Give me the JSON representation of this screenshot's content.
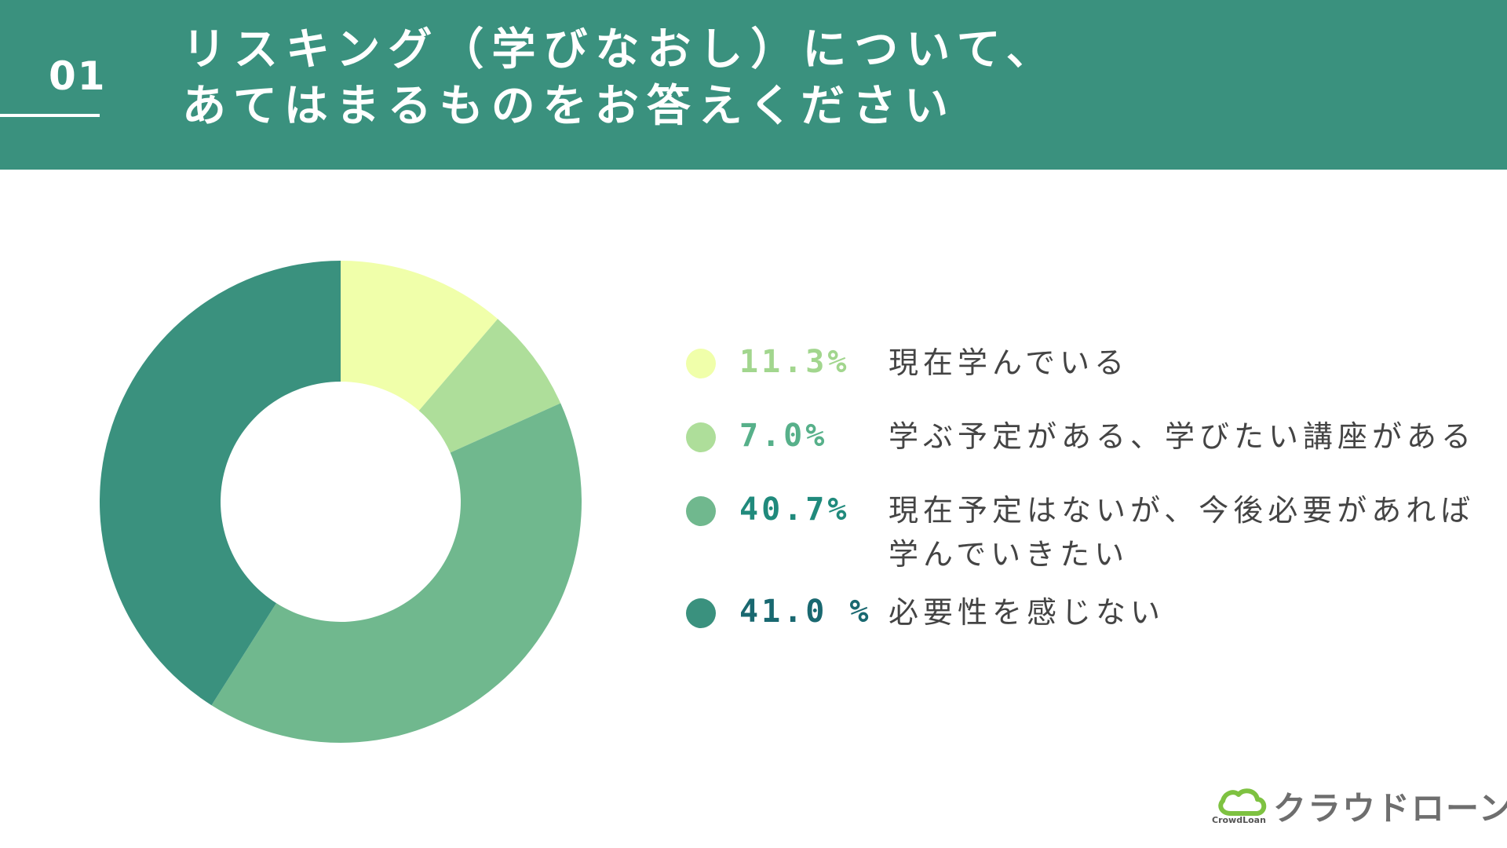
{
  "header": {
    "question_number": "01",
    "title_lines": [
      "リスキング（学びなおし）について、",
      "あてはまるものをお答えください"
    ]
  },
  "chart_data": {
    "type": "pie",
    "donut": true,
    "start_angle_deg": 0,
    "direction": "clockwise",
    "slices": [
      {
        "value": 11.3,
        "value_label": "11.3%",
        "label_lines": [
          "現在学んでいる"
        ],
        "color": "#f0ffaa",
        "label_color": "#a2d68e"
      },
      {
        "value": 7.0,
        "value_label": "7.0%",
        "label_lines": [
          "学ぶ予定がある、学びたい講座がある"
        ],
        "color": "#aede9a",
        "label_color": "#57b08a"
      },
      {
        "value": 40.7,
        "value_label": "40.7%",
        "label_lines": [
          "現在予定はないが、今後必要があれば",
          "学んでいきたい"
        ],
        "color": "#70b88e",
        "label_color": "#208a7c"
      },
      {
        "value": 41.0,
        "value_label": "41.0 %",
        "label_lines": [
          "必要性を感じない"
        ],
        "color": "#3a917e",
        "label_color": "#196870"
      }
    ]
  },
  "brand": {
    "name": "クラウドローン",
    "sub": "CrowdLoan",
    "accent": "#7ec241"
  }
}
